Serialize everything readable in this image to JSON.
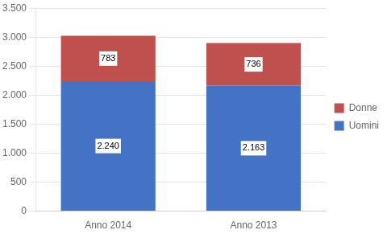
{
  "chart_data": {
    "type": "bar",
    "stacked": true,
    "categories": [
      "Anno 2014",
      "Anno 2013"
    ],
    "series": [
      {
        "name": "Uomini",
        "color": "#4472C4",
        "values": [
          2240,
          2163
        ],
        "value_labels": [
          "2.240",
          "2.163"
        ]
      },
      {
        "name": "Donne",
        "color": "#C0504D",
        "values": [
          783,
          736
        ],
        "value_labels": [
          "783",
          "736"
        ]
      }
    ],
    "ylim": [
      0,
      3500
    ],
    "yticks": [
      0,
      500,
      {
        "value": 1000,
        "label": "1.000"
      },
      {
        "value": 1500,
        "label": "1.500"
      },
      {
        "value": 2000,
        "label": "2.000"
      },
      {
        "value": 2500,
        "label": "2.500"
      },
      {
        "value": 3000,
        "label": "3.000"
      },
      {
        "value": 3500,
        "label": "3.500"
      }
    ],
    "grid": true,
    "legend": "right",
    "data_labels": true
  }
}
